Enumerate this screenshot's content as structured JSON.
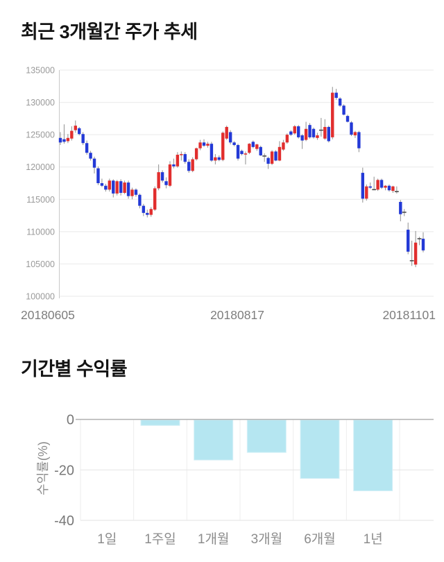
{
  "price_section": {
    "title": "최근 3개월간 주가 추세"
  },
  "returns_section": {
    "title": "기간별 수익률"
  },
  "chart_data": [
    {
      "type": "candlestick",
      "title": "최근 3개월간 주가 추세",
      "ylim": [
        100000,
        135000
      ],
      "y_ticks": [
        135000,
        130000,
        125000,
        120000,
        115000,
        110000,
        105000,
        100000
      ],
      "x_tick_labels": [
        "20180605",
        "20180817",
        "20181101"
      ],
      "grid": true,
      "colors": {
        "up": "#e12e2e",
        "down": "#2339d6",
        "wick": "#8f8f8f",
        "doji": "#4a4a4a",
        "grid": "#e9e9e9",
        "axis": "#c9c9c9",
        "tick_text": "#9a9a9a",
        "xlabel_text": "#7d7d7d"
      },
      "candles_format": [
        "open",
        "high",
        "low",
        "close"
      ],
      "candles": [
        [
          124500,
          125400,
          123400,
          123800
        ],
        [
          124300,
          126600,
          123600,
          123900
        ],
        [
          124000,
          125100,
          123700,
          124500
        ],
        [
          124400,
          126300,
          124100,
          125600
        ],
        [
          125700,
          127200,
          125300,
          126400
        ],
        [
          126000,
          126200,
          124900,
          125100
        ],
        [
          125100,
          125400,
          123400,
          123700
        ],
        [
          123700,
          124100,
          121900,
          122200
        ],
        [
          122200,
          122500,
          121000,
          121300
        ],
        [
          121300,
          121600,
          119000,
          119900
        ],
        [
          119800,
          120100,
          117200,
          117500
        ],
        [
          117500,
          118200,
          116900,
          117100
        ],
        [
          117100,
          117400,
          116200,
          116500
        ],
        [
          116500,
          118200,
          116200,
          117900
        ],
        [
          117900,
          118100,
          115300,
          115900
        ],
        [
          115900,
          118000,
          115600,
          117800
        ],
        [
          117800,
          118100,
          115600,
          116000
        ],
        [
          116000,
          117900,
          115800,
          117600
        ],
        [
          117600,
          117900,
          115100,
          115500
        ],
        [
          115500,
          116800,
          115000,
          116500
        ],
        [
          116500,
          116700,
          115400,
          115700
        ],
        [
          115700,
          115900,
          113600,
          114000
        ],
        [
          114000,
          114300,
          112400,
          112900
        ],
        [
          112900,
          113400,
          112200,
          112600
        ],
        [
          112600,
          113800,
          112300,
          113500
        ],
        [
          113400,
          117000,
          113200,
          116700
        ],
        [
          116700,
          120400,
          116400,
          119200
        ],
        [
          119200,
          119500,
          117600,
          117900
        ],
        [
          117800,
          118400,
          116700,
          117200
        ],
        [
          117100,
          120900,
          116900,
          120400
        ],
        [
          120400,
          121300,
          119800,
          120100
        ],
        [
          120100,
          122300,
          119900,
          121900
        ],
        [
          121900,
          122400,
          121000,
          122000
        ],
        [
          122000,
          122300,
          120500,
          120800
        ],
        [
          120800,
          121200,
          119100,
          119400
        ],
        [
          119400,
          121500,
          119200,
          121200
        ],
        [
          121200,
          123000,
          121000,
          122900
        ],
        [
          122900,
          124200,
          122600,
          123800
        ],
        [
          123800,
          124300,
          123100,
          123300
        ],
        [
          123300,
          123900,
          123000,
          123600
        ],
        [
          123600,
          123900,
          120800,
          121000
        ],
        [
          121000,
          122000,
          120400,
          121500
        ],
        [
          121500,
          121800,
          120900,
          121100
        ],
        [
          121100,
          125500,
          120900,
          125300
        ],
        [
          124400,
          126400,
          124200,
          126200
        ],
        [
          125400,
          125700,
          123500,
          123800
        ],
        [
          123800,
          124000,
          123200,
          123400
        ],
        [
          123400,
          123600,
          121000,
          121300
        ],
        [
          122500,
          122700,
          121800,
          122000
        ],
        [
          122000,
          122400,
          120400,
          122100
        ],
        [
          122200,
          123700,
          122000,
          123600
        ],
        [
          123900,
          124100,
          122900,
          123100
        ],
        [
          122800,
          123600,
          122500,
          123500
        ],
        [
          123100,
          123300,
          121700,
          121800
        ],
        [
          121700,
          122100,
          120800,
          121700
        ],
        [
          121400,
          121600,
          119700,
          120500
        ],
        [
          120500,
          122600,
          120300,
          122400
        ],
        [
          122400,
          122600,
          120900,
          121000
        ],
        [
          121000,
          124000,
          120900,
          123100
        ],
        [
          122700,
          124200,
          122500,
          123800
        ],
        [
          123800,
          125200,
          123600,
          125000
        ],
        [
          125500,
          125700,
          124800,
          125000
        ],
        [
          125200,
          126500,
          125000,
          126300
        ],
        [
          126300,
          126500,
          124400,
          124600
        ],
        [
          124900,
          125100,
          122800,
          124100
        ],
        [
          124200,
          127000,
          124000,
          125900
        ],
        [
          126500,
          126800,
          124400,
          124600
        ],
        [
          125900,
          126100,
          124400,
          124600
        ],
        [
          124500,
          125300,
          124200,
          124900
        ],
        [
          125700,
          127600,
          124700,
          125700
        ],
        [
          124400,
          127400,
          124200,
          126200
        ],
        [
          126200,
          126400,
          123800,
          124000
        ],
        [
          124600,
          132400,
          124300,
          131500
        ],
        [
          131500,
          132100,
          130400,
          130700
        ],
        [
          130600,
          130800,
          129300,
          129500
        ],
        [
          129500,
          129700,
          128000,
          128100
        ],
        [
          127900,
          128100,
          126900,
          127000
        ],
        [
          126900,
          127100,
          124800,
          125000
        ],
        [
          124900,
          125600,
          124500,
          125400
        ],
        [
          125400,
          125600,
          122300,
          122900
        ],
        [
          119100,
          119900,
          114500,
          115100
        ],
        [
          115100,
          117300,
          114800,
          117000
        ],
        [
          117000,
          117600,
          116600,
          116800
        ],
        [
          116500,
          118500,
          116400,
          116500
        ],
        [
          116500,
          118200,
          116300,
          118000
        ],
        [
          118000,
          118200,
          116600,
          116800
        ],
        [
          116800,
          117200,
          116400,
          117100
        ],
        [
          117100,
          117300,
          116200,
          116400
        ],
        [
          116300,
          117100,
          116000,
          117000
        ],
        [
          116200,
          117000,
          115900,
          116200
        ],
        [
          114600,
          114900,
          111600,
          112700
        ],
        [
          113000,
          113500,
          112400,
          113000
        ],
        [
          110300,
          111400,
          106500,
          106900
        ],
        [
          105500,
          108600,
          104700,
          105500
        ],
        [
          104900,
          110100,
          104500,
          108300
        ],
        [
          108900,
          109200,
          107900,
          108900
        ],
        [
          108900,
          109900,
          106800,
          107100
        ]
      ]
    },
    {
      "type": "bar",
      "title": "기간별 수익률",
      "categories": [
        "1일",
        "1주일",
        "1개월",
        "3개월",
        "6개월",
        "1년"
      ],
      "values": [
        0,
        -2.4,
        -16.1,
        -13.1,
        -23.4,
        -28.3
      ],
      "ylabel": "수익률(%)",
      "y_ticks": [
        0,
        -20,
        -40
      ],
      "ylim": [
        -40,
        0
      ],
      "grid": true,
      "legend": "none",
      "colors": {
        "bar_fill": "#b5e6f1",
        "bar_border": "#d5f0f7",
        "zero_axis": "#b0b0b0",
        "grid": "#e3e3e3",
        "grid_vertical": "#ededed",
        "tick_text": "#787878",
        "category_text": "#8c8c8c",
        "ylabel_text": "#8c8c8c"
      }
    }
  ]
}
